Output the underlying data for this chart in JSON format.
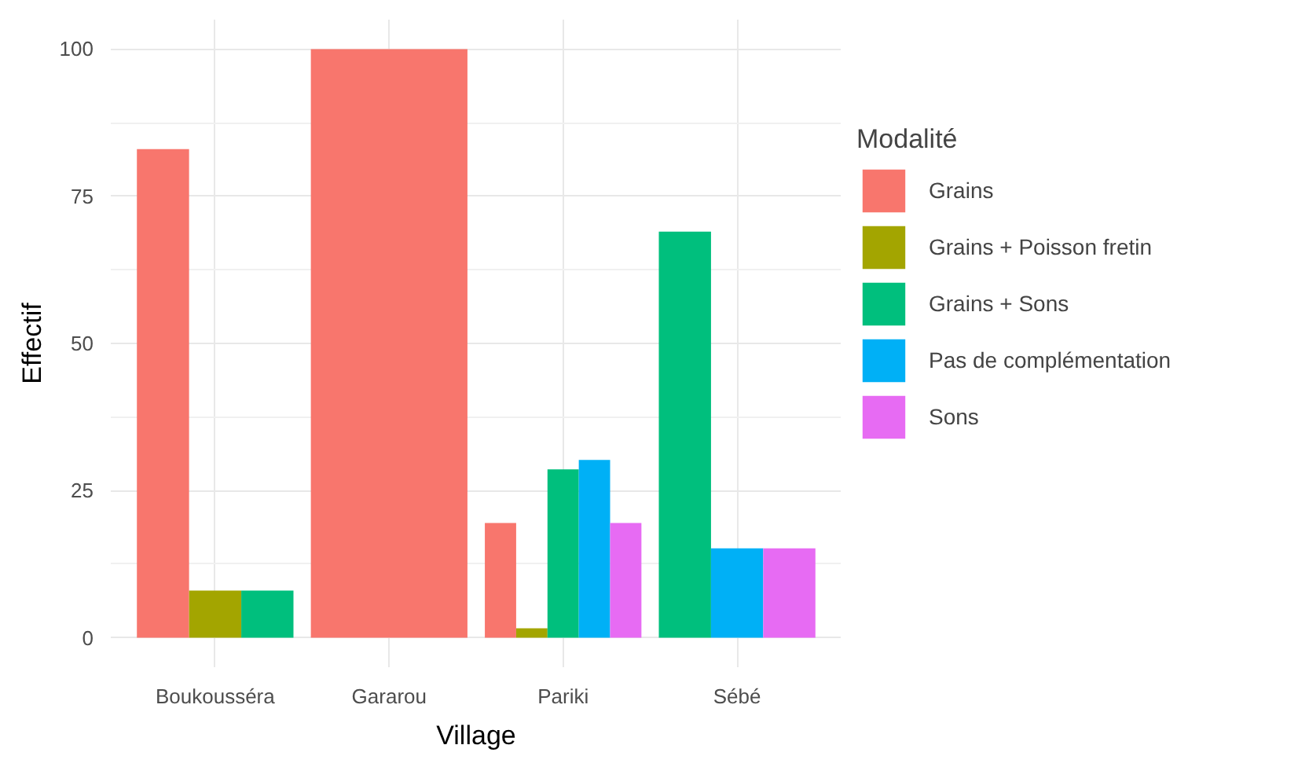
{
  "chart_data": {
    "type": "bar",
    "xlabel": "Village",
    "ylabel": "Effectif",
    "legend_title": "Modalité",
    "categories": [
      "Boukousséra",
      "Gararou",
      "Pariki",
      "Sébé"
    ],
    "series": [
      {
        "name": "Grains",
        "color": "#f8766d",
        "values": [
          83,
          100,
          19.5,
          null
        ]
      },
      {
        "name": "Grains + Poisson fretin",
        "color": "#a3a500",
        "values": [
          8,
          null,
          1.6,
          null
        ]
      },
      {
        "name": "Grains + Sons",
        "color": "#00bf7d",
        "values": [
          8,
          null,
          28.6,
          69
        ]
      },
      {
        "name": "Pas de complémentation",
        "color": "#00b0f6",
        "values": [
          null,
          null,
          30.2,
          15.2
        ]
      },
      {
        "name": "Sons",
        "color": "#e76bf3",
        "values": [
          null,
          null,
          19.5,
          15.2
        ]
      }
    ],
    "ylim": [
      -5,
      105
    ],
    "yticks": [
      0,
      25,
      50,
      75,
      100
    ],
    "grid": true,
    "legend": "right"
  }
}
